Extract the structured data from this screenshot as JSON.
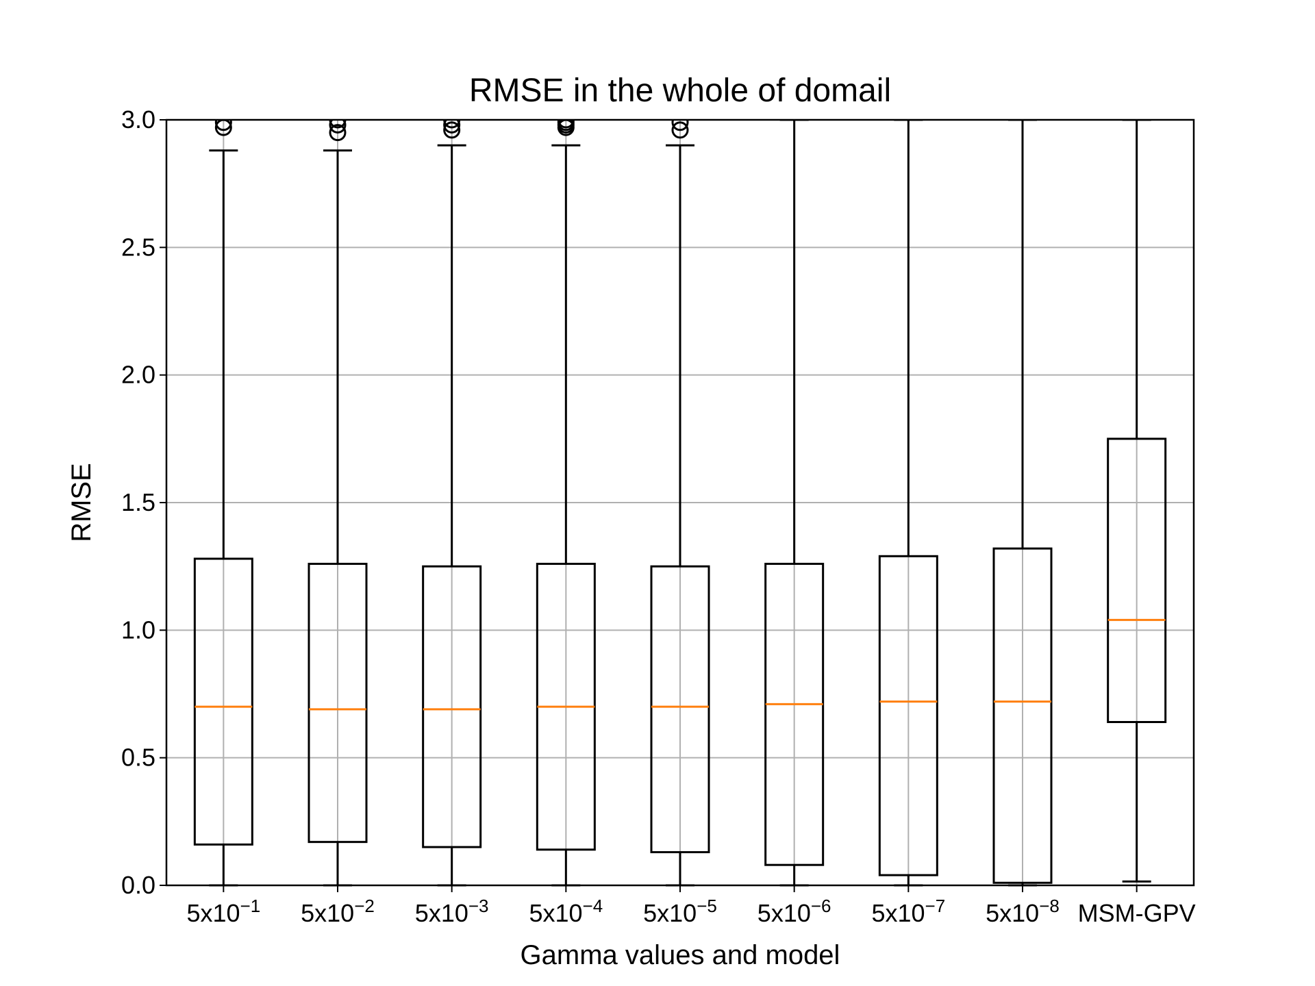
{
  "chart_data": {
    "type": "box",
    "title": "RMSE in the whole of domail",
    "xlabel": "Gamma values and model",
    "ylabel": "RMSE",
    "ylim": [
      0.0,
      3.0
    ],
    "yticks": [
      "0.0",
      "0.5",
      "1.0",
      "1.5",
      "2.0",
      "2.5",
      "3.0"
    ],
    "grid": true,
    "categories": [
      {
        "base": "5x10",
        "exp": "−1"
      },
      {
        "base": "5x10",
        "exp": "−2"
      },
      {
        "base": "5x10",
        "exp": "−3"
      },
      {
        "base": "5x10",
        "exp": "−4"
      },
      {
        "base": "5x10",
        "exp": "−5"
      },
      {
        "base": "5x10",
        "exp": "−6"
      },
      {
        "base": "5x10",
        "exp": "−7"
      },
      {
        "base": "5x10",
        "exp": "−8"
      },
      {
        "base": "MSM-GPV",
        "exp": ""
      }
    ],
    "boxes": [
      {
        "whislo": 0.0,
        "q1": 0.16,
        "med": 0.7,
        "q3": 1.28,
        "whishi": 2.88,
        "fliers": [
          2.97,
          2.99
        ]
      },
      {
        "whislo": 0.0,
        "q1": 0.17,
        "med": 0.69,
        "q3": 1.26,
        "whishi": 2.88,
        "fliers": [
          2.95,
          2.98,
          3.0
        ]
      },
      {
        "whislo": 0.0,
        "q1": 0.15,
        "med": 0.69,
        "q3": 1.25,
        "whishi": 2.9,
        "fliers": [
          2.96,
          2.98,
          3.0
        ]
      },
      {
        "whislo": 0.0,
        "q1": 0.14,
        "med": 0.7,
        "q3": 1.26,
        "whishi": 2.9,
        "fliers": [
          2.97,
          2.98,
          2.99,
          3.0
        ]
      },
      {
        "whislo": 0.0,
        "q1": 0.13,
        "med": 0.7,
        "q3": 1.25,
        "whishi": 2.9,
        "fliers": [
          2.96,
          2.99
        ]
      },
      {
        "whislo": 0.0,
        "q1": 0.08,
        "med": 0.71,
        "q3": 1.26,
        "whishi": 3.0,
        "fliers": []
      },
      {
        "whislo": 0.0,
        "q1": 0.04,
        "med": 0.72,
        "q3": 1.29,
        "whishi": 3.0,
        "fliers": []
      },
      {
        "whislo": 0.0,
        "q1": 0.01,
        "med": 0.72,
        "q3": 1.32,
        "whishi": 3.0,
        "fliers": []
      },
      {
        "whislo": 0.015,
        "q1": 0.64,
        "med": 1.04,
        "q3": 1.75,
        "whishi": 3.0,
        "fliers": []
      }
    ],
    "colors": {
      "box": "#000000",
      "median": "#ff7f0e",
      "grid": "#b0b0b0"
    }
  }
}
